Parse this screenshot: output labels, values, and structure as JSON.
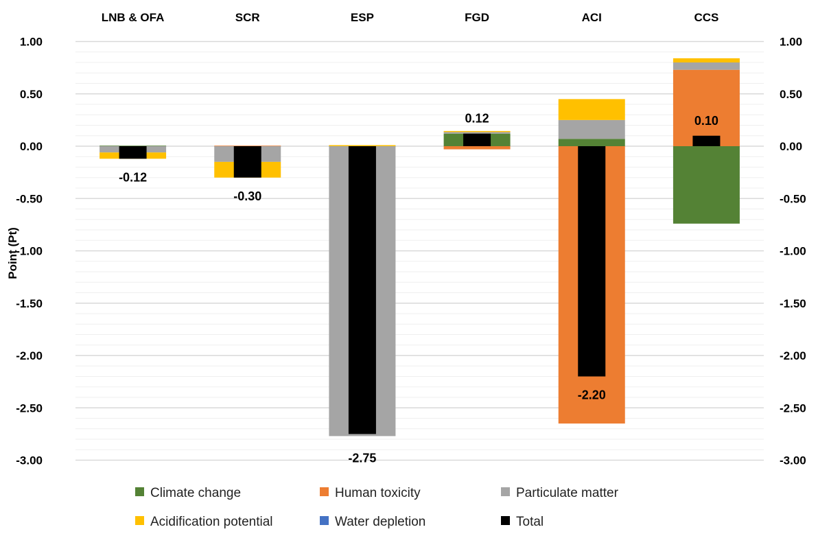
{
  "chart_data": {
    "type": "bar",
    "stacked": true,
    "title": "",
    "ylabel": "Point (Pt)",
    "ylim": [
      -3.0,
      1.0
    ],
    "yticks": [
      "1.00",
      "0.50",
      "0.00",
      "-0.50",
      "-1.00",
      "-1.50",
      "-2.00",
      "-2.50",
      "-3.00"
    ],
    "ytick_values": [
      1.0,
      0.5,
      0.0,
      -0.5,
      -1.0,
      -1.5,
      -2.0,
      -2.5,
      -3.0
    ],
    "secondary_axis": true,
    "grid": true,
    "legend_position": "bottom",
    "categories": [
      "LNB & OFA",
      "SCR",
      "ESP",
      "FGD",
      "ACI",
      "CCS"
    ],
    "series": [
      {
        "name": "Climate change",
        "color": "#548235",
        "values": [
          0.005,
          0.0,
          0.005,
          0.12,
          0.07,
          -0.74
        ]
      },
      {
        "name": "Human toxicity",
        "color": "#ED7D31",
        "values": [
          0.0,
          0.005,
          0.0,
          -0.03,
          -2.65,
          0.73
        ]
      },
      {
        "name": "Particulate matter",
        "color": "#A5A5A5",
        "values": [
          -0.06,
          -0.15,
          -2.77,
          0.015,
          0.18,
          0.07
        ]
      },
      {
        "name": "Acidification potential",
        "color": "#FFC000",
        "values": [
          -0.06,
          -0.15,
          0.005,
          0.01,
          0.2,
          0.04
        ]
      },
      {
        "name": "Water depletion",
        "color": "#4472C4",
        "values": [
          0,
          0,
          0,
          0,
          0,
          0
        ]
      }
    ],
    "total": {
      "name": "Total",
      "color": "#000000",
      "values": [
        -0.12,
        -0.3,
        -2.75,
        0.12,
        -2.2,
        0.1
      ],
      "labels": [
        "-0.12",
        "-0.30",
        "-2.75",
        "0.12",
        "-2.20",
        "0.10"
      ]
    }
  }
}
